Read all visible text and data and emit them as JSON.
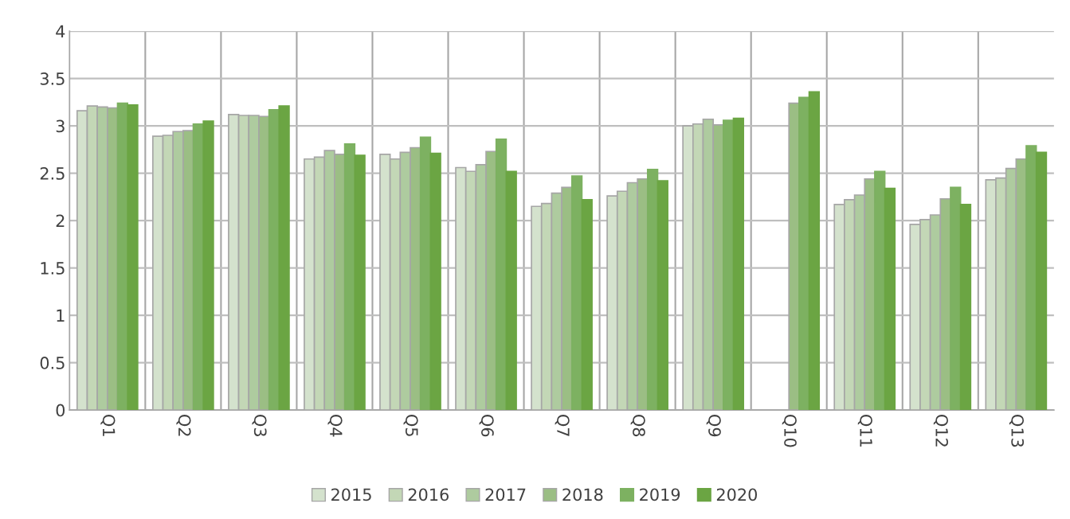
{
  "chart_data": {
    "type": "bar",
    "categories": [
      "Q1",
      "Q2",
      "Q3",
      "Q4",
      "Q5",
      "Q6",
      "Q7",
      "Q8",
      "Q9",
      "Q10",
      "Q11",
      "Q12",
      "Q13"
    ],
    "series": [
      {
        "name": "2015",
        "color": "#d4e2cd",
        "values": [
          3.16,
          2.89,
          3.12,
          2.65,
          2.7,
          2.56,
          2.15,
          2.26,
          3.0,
          null,
          2.17,
          1.96,
          2.43
        ]
      },
      {
        "name": "2016",
        "color": "#c3d7b6",
        "values": [
          3.21,
          2.9,
          3.11,
          2.67,
          2.65,
          2.52,
          2.18,
          2.31,
          3.02,
          null,
          2.22,
          2.01,
          2.45
        ]
      },
      {
        "name": "2017",
        "color": "#aecb9f",
        "values": [
          3.2,
          2.94,
          3.11,
          2.74,
          2.72,
          2.59,
          2.29,
          2.4,
          3.07,
          null,
          2.27,
          2.06,
          2.55
        ]
      },
      {
        "name": "2018",
        "color": "#9bbe84",
        "values": [
          3.19,
          2.95,
          3.1,
          2.7,
          2.77,
          2.73,
          2.35,
          2.44,
          3.01,
          3.24,
          2.44,
          2.23,
          2.65
        ]
      },
      {
        "name": "2019",
        "color": "#7db161",
        "values": [
          3.24,
          3.02,
          3.17,
          2.81,
          2.88,
          2.86,
          2.47,
          2.54,
          3.06,
          3.3,
          2.52,
          2.35,
          2.79
        ]
      },
      {
        "name": "2020",
        "color": "#6ba543",
        "values": [
          3.22,
          3.05,
          3.21,
          2.69,
          2.71,
          2.52,
          2.22,
          2.42,
          3.08,
          3.36,
          2.34,
          2.17,
          2.72
        ]
      }
    ],
    "ylim": [
      0,
      4
    ],
    "yticks": [
      0,
      0.5,
      1,
      1.5,
      2,
      2.5,
      3,
      3.5,
      4
    ],
    "grid": true,
    "legend": "bottom"
  }
}
